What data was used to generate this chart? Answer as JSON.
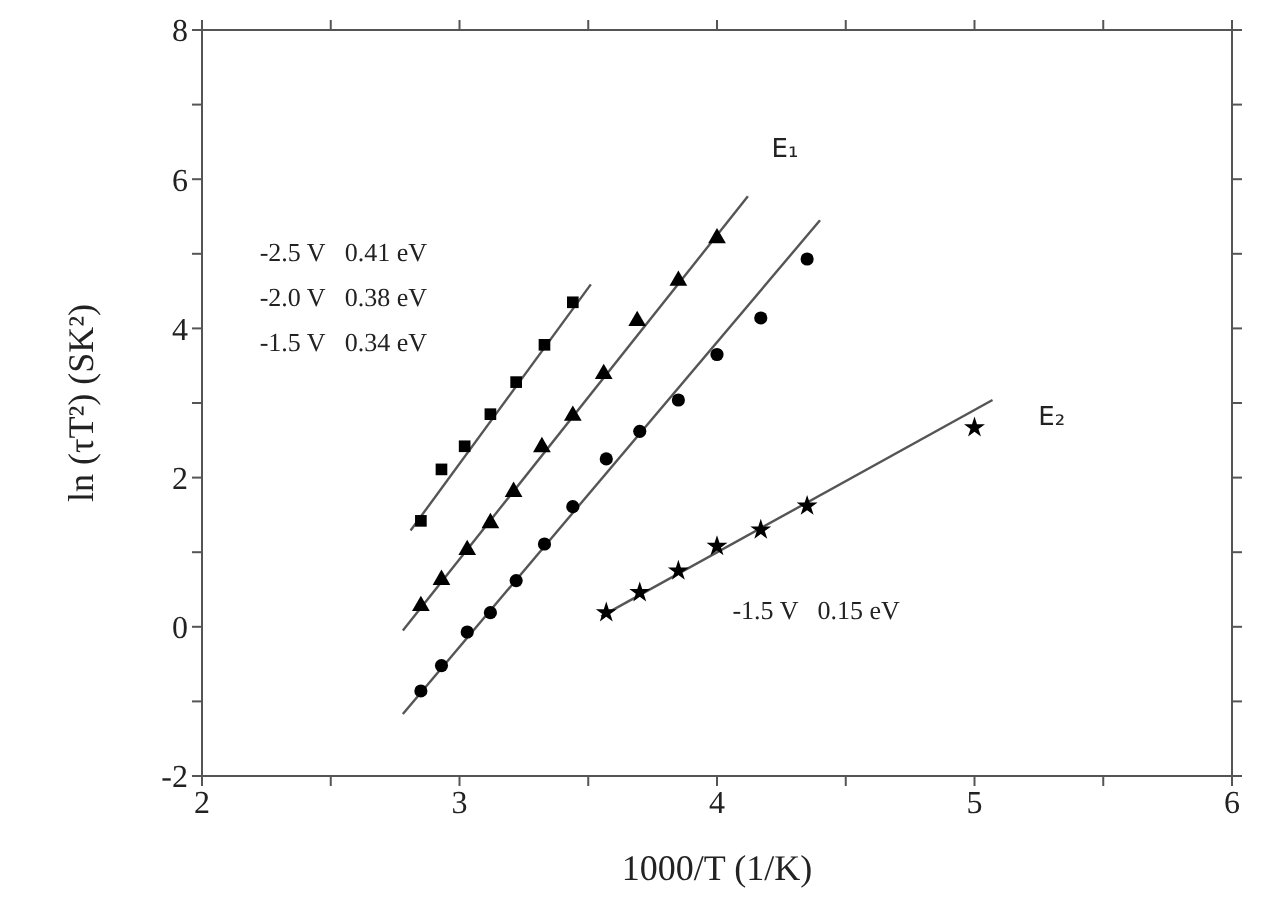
{
  "chart_data": {
    "type": "scatter",
    "xlabel": "1000/T (1/K)",
    "ylabel": "ln (τT²) (SK²)",
    "xlim": [
      2,
      6
    ],
    "xticks": [
      2,
      {
        "value": 2.5,
        "label": null
      },
      3,
      {
        "value": 3.5,
        "label": null
      },
      4,
      {
        "value": 4.5,
        "label": null
      },
      5,
      {
        "value": 5.5,
        "label": null
      },
      6
    ],
    "ylim": [
      -2,
      8
    ],
    "yticks": [
      -2,
      {
        "value": -1,
        "label": null
      },
      0,
      {
        "value": 1,
        "label": null
      },
      2,
      {
        "value": 3,
        "label": null
      },
      4,
      {
        "value": 5,
        "label": null
      },
      6,
      {
        "value": 7,
        "label": null
      },
      8
    ],
    "grid": false,
    "legend": false,
    "series": [
      {
        "marker": "square",
        "color": "#000000",
        "x": [
          2.85,
          2.93,
          3.02,
          3.12,
          3.22,
          3.33,
          3.44
        ],
        "values": [
          1.42,
          2.11,
          2.42,
          2.85,
          3.28,
          3.78,
          4.35
        ]
      },
      {
        "marker": "triangle",
        "color": "#000000",
        "x": [
          2.85,
          2.93,
          3.03,
          3.12,
          3.21,
          3.32,
          3.44,
          3.56,
          3.69,
          3.85,
          4.0
        ],
        "values": [
          0.28,
          0.63,
          1.03,
          1.39,
          1.81,
          2.41,
          2.83,
          3.39,
          4.1,
          4.64,
          5.21
        ]
      },
      {
        "marker": "circle",
        "color": "#000000",
        "x": [
          2.85,
          2.93,
          3.03,
          3.12,
          3.22,
          3.33,
          3.44,
          3.57,
          3.7,
          3.85,
          4.0,
          4.17,
          4.35
        ],
        "values": [
          -0.86,
          -0.52,
          -0.07,
          0.19,
          0.62,
          1.11,
          1.61,
          2.25,
          2.62,
          3.04,
          3.65,
          4.14,
          4.93
        ]
      },
      {
        "marker": "star",
        "color": "#000000",
        "x": [
          3.57,
          3.7,
          3.85,
          4.0,
          4.17,
          4.35,
          5.0
        ],
        "values": [
          0.19,
          0.46,
          0.75,
          1.08,
          1.3,
          1.62,
          2.67
        ]
      },
      {
        "type": "line",
        "marker": "none",
        "color": "#555555",
        "x": [
          2.81,
          3.51
        ],
        "values": [
          1.29,
          4.59
        ]
      },
      {
        "type": "line",
        "marker": "none",
        "color": "#555555",
        "x": [
          2.78,
          4.12
        ],
        "values": [
          -0.05,
          5.77
        ]
      },
      {
        "type": "line",
        "marker": "none",
        "color": "#555555",
        "x": [
          2.78,
          4.4
        ],
        "values": [
          -1.17,
          5.45
        ]
      },
      {
        "type": "line",
        "marker": "none",
        "color": "#555555",
        "x": [
          3.55,
          5.07
        ],
        "values": [
          0.14,
          3.04
        ]
      }
    ],
    "annotations": [
      "E₁",
      "E₂",
      "-2.5 V   0.41 eV",
      "-2.0 V   0.38 eV",
      "-1.5 V   0.34 eV",
      "-1.5 V   0.15 eV"
    ]
  }
}
